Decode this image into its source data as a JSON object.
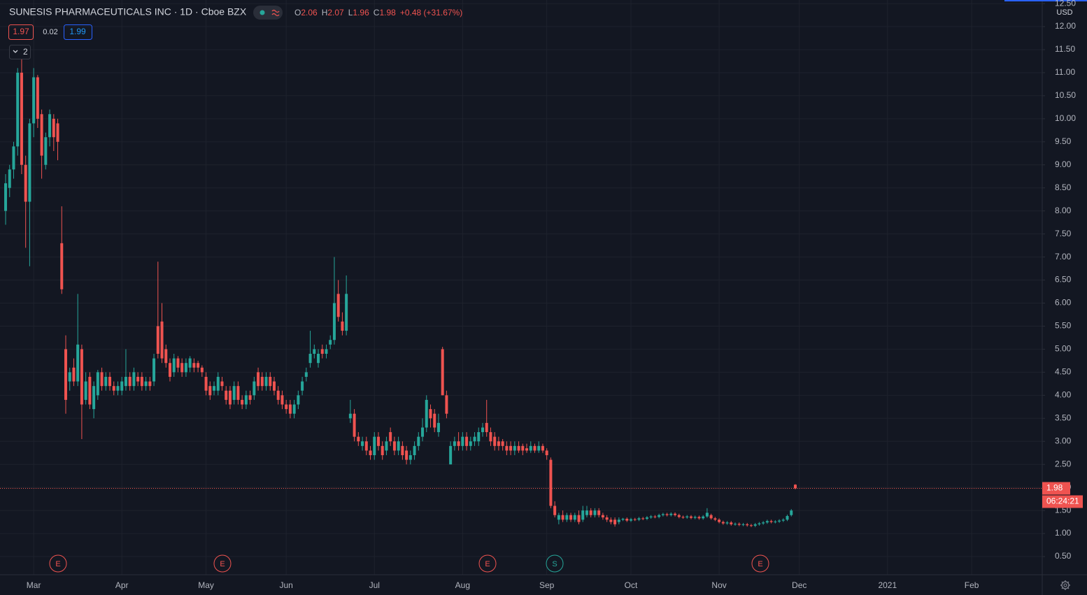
{
  "chart_data": {
    "type": "candlestick",
    "title": "SUNESIS PHARMACEUTICALS INC · 1D · Cboe BZX",
    "legend": [
      {
        "key": "O",
        "value": "2.06"
      },
      {
        "key": "H",
        "value": "2.07"
      },
      {
        "key": "L",
        "value": "1.96"
      },
      {
        "key": "C",
        "value": "1.98"
      }
    ],
    "change": "+0.48 (+31.67%)",
    "bid": "1.97",
    "spread": "0.02",
    "ask": "1.99",
    "indicators": "2",
    "currency": "USD",
    "countdown": "06:24:21",
    "events": [
      "E",
      "E",
      "E",
      "S",
      "E"
    ],
    "up_color": "#26a69a",
    "down_color": "#ef5350",
    "grid": true,
    "xlim": [
      -1.4,
      258.6
    ],
    "xticks": [
      {
        "value": 7,
        "label": "Mar"
      },
      {
        "value": 29,
        "label": "Apr"
      },
      {
        "value": 50,
        "label": "May"
      },
      {
        "value": 70,
        "label": "Jun"
      },
      {
        "value": 92,
        "label": "Jul"
      },
      {
        "value": 114,
        "label": "Aug"
      },
      {
        "value": 135,
        "label": "Sep"
      },
      {
        "value": 156,
        "label": "Oct"
      },
      {
        "value": 178,
        "label": "Nov"
      },
      {
        "value": 198,
        "label": "Dec"
      },
      {
        "value": 220,
        "label": "2021"
      },
      {
        "value": 241,
        "label": "Feb"
      }
    ],
    "ylim": [
      0.106,
      12.577
    ],
    "yticks": [
      {
        "value": 0.5,
        "label": "0.50"
      },
      {
        "value": 1,
        "label": "1.00"
      },
      {
        "value": 1.5,
        "label": "1.50"
      },
      {
        "value": 2,
        "label": "2.00"
      },
      {
        "value": 2.5,
        "label": "2.50"
      },
      {
        "value": 3,
        "label": "3.00"
      },
      {
        "value": 3.5,
        "label": "3.50"
      },
      {
        "value": 4,
        "label": "4.00"
      },
      {
        "value": 4.5,
        "label": "4.50"
      },
      {
        "value": 5,
        "label": "5.00"
      },
      {
        "value": 5.5,
        "label": "5.50"
      },
      {
        "value": 6,
        "label": "6.00"
      },
      {
        "value": 6.5,
        "label": "6.50"
      },
      {
        "value": 7,
        "label": "7.00"
      },
      {
        "value": 7.5,
        "label": "7.50"
      },
      {
        "value": 8,
        "label": "8.00"
      },
      {
        "value": 8.5,
        "label": "8.50"
      },
      {
        "value": 9,
        "label": "9.00"
      },
      {
        "value": 9.5,
        "label": "9.50"
      },
      {
        "value": 10,
        "label": "10.00"
      },
      {
        "value": 10.5,
        "label": "10.50"
      },
      {
        "value": 11,
        "label": "11.00"
      },
      {
        "value": 11.5,
        "label": "11.50"
      },
      {
        "value": 12,
        "label": "12.00"
      },
      {
        "value": 12.5,
        "label": "12.50"
      }
    ],
    "candles": [
      [
        8.0,
        8.8,
        7.7,
        8.6
      ],
      [
        8.5,
        9.0,
        8.3,
        8.9
      ],
      [
        8.9,
        9.5,
        8.7,
        9.4
      ],
      [
        9.4,
        11.1,
        9.2,
        11.0
      ],
      [
        11.0,
        11.3,
        8.8,
        9.0
      ],
      [
        9.0,
        9.2,
        7.2,
        8.2
      ],
      [
        8.2,
        10.0,
        6.8,
        9.9
      ],
      [
        9.9,
        11.1,
        9.6,
        10.9
      ],
      [
        10.9,
        10.95,
        9.8,
        10.0
      ],
      [
        10.1,
        10.2,
        8.7,
        9.2
      ],
      [
        9.0,
        9.7,
        8.9,
        9.6
      ],
      [
        9.6,
        10.2,
        9.4,
        10.1
      ],
      [
        10.0,
        10.1,
        9.3,
        9.6
      ],
      [
        9.9,
        10.0,
        9.1,
        9.5
      ],
      [
        7.3,
        8.1,
        6.2,
        6.3
      ],
      [
        5.0,
        5.3,
        3.6,
        3.9
      ],
      [
        4.3,
        4.6,
        4.1,
        4.5
      ],
      [
        4.6,
        4.8,
        4.2,
        4.3
      ],
      [
        4.3,
        6.2,
        4.2,
        5.1
      ],
      [
        5.0,
        5.1,
        3.05,
        3.8
      ],
      [
        3.9,
        4.5,
        3.8,
        4.3
      ],
      [
        4.4,
        4.5,
        3.7,
        3.8
      ],
      [
        3.7,
        4.3,
        3.5,
        4.2
      ],
      [
        4.0,
        4.55,
        3.9,
        4.5
      ],
      [
        4.5,
        4.6,
        4.1,
        4.2
      ],
      [
        4.2,
        4.5,
        4.1,
        4.4
      ],
      [
        4.4,
        4.5,
        4.1,
        4.2
      ],
      [
        4.2,
        4.3,
        4.0,
        4.1
      ],
      [
        4.1,
        4.3,
        4.0,
        4.2
      ],
      [
        4.1,
        4.4,
        4.0,
        4.3
      ],
      [
        4.2,
        5.0,
        4.1,
        4.4
      ],
      [
        4.4,
        4.5,
        4.1,
        4.2
      ],
      [
        4.2,
        4.6,
        4.1,
        4.5
      ],
      [
        4.4,
        4.5,
        4.2,
        4.3
      ],
      [
        4.4,
        4.5,
        4.1,
        4.2
      ],
      [
        4.2,
        4.4,
        4.1,
        4.3
      ],
      [
        4.3,
        4.4,
        4.1,
        4.2
      ],
      [
        4.3,
        4.9,
        4.2,
        4.8
      ],
      [
        5.5,
        6.9,
        4.8,
        4.9
      ],
      [
        5.6,
        6.0,
        4.7,
        4.8
      ],
      [
        5.0,
        5.1,
        4.6,
        4.7
      ],
      [
        4.7,
        4.8,
        4.3,
        4.4
      ],
      [
        4.5,
        4.9,
        4.4,
        4.8
      ],
      [
        4.8,
        4.85,
        4.5,
        4.6
      ],
      [
        4.7,
        4.8,
        4.4,
        4.5
      ],
      [
        4.5,
        4.8,
        4.4,
        4.7
      ],
      [
        4.6,
        4.85,
        4.5,
        4.8
      ],
      [
        4.7,
        4.8,
        4.5,
        4.6
      ],
      [
        4.7,
        4.75,
        4.5,
        4.6
      ],
      [
        4.6,
        4.65,
        4.4,
        4.5
      ],
      [
        4.4,
        4.5,
        4.0,
        4.1
      ],
      [
        4.2,
        4.3,
        3.9,
        4.0
      ],
      [
        4.1,
        4.3,
        4.0,
        4.2
      ],
      [
        4.1,
        4.5,
        4.0,
        4.4
      ],
      [
        4.3,
        4.4,
        4.1,
        4.2
      ],
      [
        4.1,
        4.2,
        3.8,
        3.9
      ],
      [
        4.1,
        4.2,
        3.7,
        3.8
      ],
      [
        3.9,
        4.3,
        3.8,
        4.2
      ],
      [
        4.2,
        4.3,
        3.8,
        3.9
      ],
      [
        3.9,
        4.0,
        3.7,
        3.8
      ],
      [
        3.8,
        4.1,
        3.7,
        4.0
      ],
      [
        4.0,
        4.1,
        3.8,
        3.9
      ],
      [
        4.0,
        4.4,
        3.9,
        4.3
      ],
      [
        4.5,
        4.6,
        4.1,
        4.2
      ],
      [
        4.4,
        4.5,
        4.1,
        4.2
      ],
      [
        4.2,
        4.5,
        4.1,
        4.4
      ],
      [
        4.4,
        4.5,
        4.1,
        4.2
      ],
      [
        4.3,
        4.4,
        4.0,
        4.1
      ],
      [
        4.1,
        4.2,
        3.8,
        3.9
      ],
      [
        4.0,
        4.1,
        3.7,
        3.8
      ],
      [
        3.8,
        3.9,
        3.6,
        3.7
      ],
      [
        3.8,
        3.9,
        3.5,
        3.6
      ],
      [
        3.6,
        3.9,
        3.5,
        3.8
      ],
      [
        3.8,
        4.1,
        3.7,
        4.0
      ],
      [
        4.1,
        4.4,
        4.0,
        4.3
      ],
      [
        4.4,
        4.6,
        4.3,
        4.5
      ],
      [
        4.7,
        5.4,
        4.6,
        4.9
      ],
      [
        4.9,
        5.1,
        4.8,
        5.0
      ],
      [
        4.7,
        5.0,
        4.6,
        4.9
      ],
      [
        5.0,
        5.1,
        4.8,
        4.9
      ],
      [
        4.9,
        5.1,
        4.8,
        5.0
      ],
      [
        5.1,
        5.3,
        5.0,
        5.2
      ],
      [
        5.2,
        7.0,
        5.1,
        6.0
      ],
      [
        6.2,
        6.5,
        5.6,
        5.7
      ],
      [
        5.6,
        5.8,
        5.3,
        5.4
      ],
      [
        5.4,
        6.6,
        5.3,
        6.2
      ],
      [
        3.5,
        3.9,
        3.4,
        3.6
      ],
      [
        3.6,
        3.7,
        3.0,
        3.1
      ],
      [
        3.1,
        3.2,
        2.9,
        3.0
      ],
      [
        2.9,
        3.1,
        2.8,
        3.0
      ],
      [
        3.0,
        3.1,
        2.7,
        2.8
      ],
      [
        2.8,
        2.9,
        2.6,
        2.7
      ],
      [
        2.7,
        3.2,
        2.6,
        3.1
      ],
      [
        3.1,
        3.2,
        2.8,
        2.9
      ],
      [
        2.9,
        3.0,
        2.6,
        2.7
      ],
      [
        2.8,
        3.1,
        2.7,
        3.0
      ],
      [
        3.2,
        3.3,
        2.9,
        3.0
      ],
      [
        3.0,
        3.1,
        2.7,
        2.8
      ],
      [
        2.8,
        3.1,
        2.7,
        3.0
      ],
      [
        2.9,
        3.0,
        2.6,
        2.7
      ],
      [
        2.8,
        2.9,
        2.5,
        2.6
      ],
      [
        2.6,
        2.8,
        2.5,
        2.7
      ],
      [
        2.7,
        3.0,
        2.6,
        2.9
      ],
      [
        2.9,
        3.2,
        2.8,
        3.1
      ],
      [
        3.1,
        3.5,
        3.0,
        3.3
      ],
      [
        3.3,
        4.0,
        3.2,
        3.9
      ],
      [
        3.7,
        3.8,
        3.3,
        3.5
      ],
      [
        3.6,
        3.7,
        3.2,
        3.3
      ],
      [
        3.2,
        3.6,
        3.1,
        3.4
      ],
      [
        5.0,
        5.05,
        4.0,
        4.0
      ],
      [
        4.0,
        4.1,
        3.5,
        3.6
      ],
      [
        2.5,
        3.0,
        2.5,
        2.9
      ],
      [
        2.9,
        3.1,
        2.8,
        3.0
      ],
      [
        3.0,
        3.2,
        2.8,
        2.9
      ],
      [
        2.9,
        3.2,
        2.8,
        3.1
      ],
      [
        3.1,
        3.2,
        2.8,
        2.9
      ],
      [
        2.9,
        3.1,
        2.8,
        3.0
      ],
      [
        3.0,
        3.2,
        2.9,
        3.1
      ],
      [
        3.0,
        3.3,
        2.9,
        3.2
      ],
      [
        3.2,
        3.4,
        3.1,
        3.3
      ],
      [
        3.4,
        3.9,
        3.1,
        3.2
      ],
      [
        3.2,
        3.3,
        2.9,
        3.0
      ],
      [
        3.1,
        3.2,
        2.8,
        2.9
      ],
      [
        3.0,
        3.1,
        2.8,
        2.9
      ],
      [
        3.0,
        3.05,
        2.8,
        2.9
      ],
      [
        2.9,
        3.0,
        2.7,
        2.8
      ],
      [
        2.9,
        3.0,
        2.7,
        2.8
      ],
      [
        2.8,
        3.0,
        2.7,
        2.9
      ],
      [
        2.9,
        3.0,
        2.75,
        2.8
      ],
      [
        2.9,
        2.95,
        2.7,
        2.8
      ],
      [
        2.85,
        2.95,
        2.75,
        2.8
      ],
      [
        2.8,
        3.0,
        2.75,
        2.9
      ],
      [
        2.9,
        2.95,
        2.75,
        2.8
      ],
      [
        2.8,
        3.0,
        2.75,
        2.9
      ],
      [
        2.9,
        2.95,
        2.75,
        2.8
      ],
      [
        2.8,
        2.85,
        2.6,
        2.7
      ],
      [
        2.6,
        2.65,
        1.55,
        1.6
      ],
      [
        1.6,
        1.7,
        1.35,
        1.4
      ],
      [
        1.3,
        1.45,
        1.2,
        1.4
      ],
      [
        1.4,
        1.5,
        1.25,
        1.3
      ],
      [
        1.3,
        1.45,
        1.25,
        1.4
      ],
      [
        1.4,
        1.45,
        1.25,
        1.3
      ],
      [
        1.3,
        1.45,
        1.25,
        1.4
      ],
      [
        1.4,
        1.5,
        1.2,
        1.25
      ],
      [
        1.3,
        1.6,
        1.25,
        1.5
      ],
      [
        1.4,
        1.6,
        1.35,
        1.5
      ],
      [
        1.5,
        1.55,
        1.35,
        1.4
      ],
      [
        1.4,
        1.55,
        1.35,
        1.5
      ],
      [
        1.5,
        1.55,
        1.35,
        1.4
      ],
      [
        1.4,
        1.45,
        1.3,
        1.35
      ],
      [
        1.35,
        1.4,
        1.25,
        1.3
      ],
      [
        1.3,
        1.35,
        1.2,
        1.25
      ],
      [
        1.3,
        1.35,
        1.15,
        1.2
      ],
      [
        1.25,
        1.35,
        1.2,
        1.3
      ],
      [
        1.3,
        1.34,
        1.27,
        1.32
      ],
      [
        1.32,
        1.35,
        1.25,
        1.28
      ],
      [
        1.28,
        1.34,
        1.25,
        1.31
      ],
      [
        1.31,
        1.34,
        1.27,
        1.3
      ],
      [
        1.3,
        1.36,
        1.27,
        1.33
      ],
      [
        1.33,
        1.36,
        1.29,
        1.32
      ],
      [
        1.32,
        1.38,
        1.29,
        1.35
      ],
      [
        1.35,
        1.4,
        1.32,
        1.37
      ],
      [
        1.37,
        1.4,
        1.33,
        1.36
      ],
      [
        1.36,
        1.43,
        1.33,
        1.4
      ],
      [
        1.4,
        1.45,
        1.37,
        1.42
      ],
      [
        1.42,
        1.45,
        1.37,
        1.4
      ],
      [
        1.4,
        1.46,
        1.37,
        1.43
      ],
      [
        1.43,
        1.46,
        1.37,
        1.4
      ],
      [
        1.4,
        1.43,
        1.33,
        1.36
      ],
      [
        1.36,
        1.39,
        1.32,
        1.35
      ],
      [
        1.35,
        1.4,
        1.32,
        1.37
      ],
      [
        1.37,
        1.4,
        1.31,
        1.34
      ],
      [
        1.34,
        1.39,
        1.31,
        1.36
      ],
      [
        1.36,
        1.39,
        1.3,
        1.33
      ],
      [
        1.33,
        1.4,
        1.3,
        1.37
      ],
      [
        1.37,
        1.55,
        1.34,
        1.45
      ],
      [
        1.4,
        1.43,
        1.3,
        1.33
      ],
      [
        1.33,
        1.36,
        1.27,
        1.3
      ],
      [
        1.3,
        1.33,
        1.22,
        1.25
      ],
      [
        1.25,
        1.28,
        1.19,
        1.22
      ],
      [
        1.22,
        1.27,
        1.19,
        1.24
      ],
      [
        1.24,
        1.27,
        1.17,
        1.2
      ],
      [
        1.2,
        1.24,
        1.17,
        1.21
      ],
      [
        1.21,
        1.24,
        1.16,
        1.19
      ],
      [
        1.19,
        1.23,
        1.16,
        1.2
      ],
      [
        1.2,
        1.23,
        1.15,
        1.18
      ],
      [
        1.18,
        1.21,
        1.14,
        1.17
      ],
      [
        1.17,
        1.23,
        1.14,
        1.2
      ],
      [
        1.2,
        1.25,
        1.17,
        1.22
      ],
      [
        1.22,
        1.27,
        1.19,
        1.24
      ],
      [
        1.24,
        1.3,
        1.21,
        1.27
      ],
      [
        1.27,
        1.3,
        1.22,
        1.25
      ],
      [
        1.25,
        1.29,
        1.22,
        1.26
      ],
      [
        1.26,
        1.31,
        1.23,
        1.28
      ],
      [
        1.28,
        1.33,
        1.25,
        1.3
      ],
      [
        1.3,
        1.41,
        1.27,
        1.38
      ],
      [
        1.4,
        1.53,
        1.37,
        1.5
      ],
      [
        2.06,
        2.07,
        1.96,
        1.98
      ]
    ]
  }
}
